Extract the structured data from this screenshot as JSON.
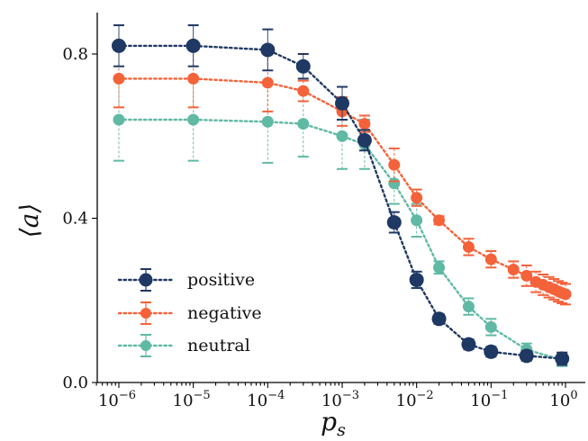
{
  "chart_data": {
    "type": "scatter",
    "xscale": "log",
    "xlabel": "p_s",
    "ylabel": "⟨a⟩",
    "xlim": [
      5e-07,
      1.7
    ],
    "ylim": [
      0.0,
      0.9
    ],
    "x_tick_values": [
      1e-06,
      1e-05,
      0.0001,
      0.001,
      0.01,
      0.1,
      1
    ],
    "x_tick_labels": [
      {
        "base": "10",
        "exp": "−6"
      },
      {
        "base": "10",
        "exp": "−5"
      },
      {
        "base": "10",
        "exp": "−4"
      },
      {
        "base": "10",
        "exp": "−3"
      },
      {
        "base": "10",
        "exp": "−2"
      },
      {
        "base": "10",
        "exp": "−1"
      },
      {
        "base": "10",
        "exp": "0"
      }
    ],
    "y_ticks": [
      0.0,
      0.4,
      0.8
    ],
    "y_tick_labels": [
      "0.0",
      "0.4",
      "0.8"
    ],
    "legend_position": "lower-left",
    "series": [
      {
        "name": "positive",
        "color": "#1f3864",
        "marker_size": "large",
        "x": [
          1e-06,
          1e-05,
          0.0001,
          0.0003,
          0.001,
          0.002,
          0.005,
          0.01,
          0.02,
          0.05,
          0.1,
          0.3,
          0.9
        ],
        "y": [
          0.82,
          0.82,
          0.81,
          0.77,
          0.68,
          0.59,
          0.39,
          0.25,
          0.155,
          0.093,
          0.075,
          0.065,
          0.058
        ],
        "err": [
          0.05,
          0.05,
          0.05,
          0.03,
          0.04,
          0.025,
          0.025,
          0.02,
          0.012,
          0.012,
          0.012,
          0.012,
          0.015
        ]
      },
      {
        "name": "negative",
        "color": "#f4623a",
        "marker_size": "medium",
        "x": [
          1e-06,
          1e-05,
          0.0001,
          0.0003,
          0.001,
          0.002,
          0.005,
          0.01,
          0.02,
          0.05,
          0.1,
          0.2,
          0.3,
          0.4,
          0.5,
          0.6,
          0.7,
          0.8,
          0.9,
          1.0
        ],
        "y": [
          0.74,
          0.74,
          0.73,
          0.71,
          0.66,
          0.63,
          0.53,
          0.45,
          0.395,
          0.33,
          0.3,
          0.275,
          0.26,
          0.245,
          0.238,
          0.232,
          0.227,
          0.222,
          0.218,
          0.215
        ],
        "err": [
          0.07,
          0.07,
          0.07,
          0.025,
          0.035,
          0.02,
          0.04,
          0.02,
          0.01,
          0.02,
          0.02,
          0.02,
          0.025,
          0.025,
          0.025,
          0.025,
          0.025,
          0.025,
          0.025,
          0.025
        ]
      },
      {
        "name": "neutral",
        "color": "#5fb9a4",
        "marker_size": "medium",
        "x": [
          1e-06,
          1e-05,
          0.0001,
          0.0003,
          0.001,
          0.002,
          0.005,
          0.01,
          0.02,
          0.05,
          0.1,
          0.3,
          0.9
        ],
        "y": [
          0.64,
          0.64,
          0.635,
          0.63,
          0.6,
          0.58,
          0.485,
          0.395,
          0.28,
          0.185,
          0.135,
          0.08,
          0.055
        ],
        "err": [
          0.1,
          0.1,
          0.1,
          0.08,
          0.08,
          0.06,
          0.05,
          0.04,
          0.015,
          0.02,
          0.02,
          0.015,
          0.015
        ]
      }
    ]
  }
}
